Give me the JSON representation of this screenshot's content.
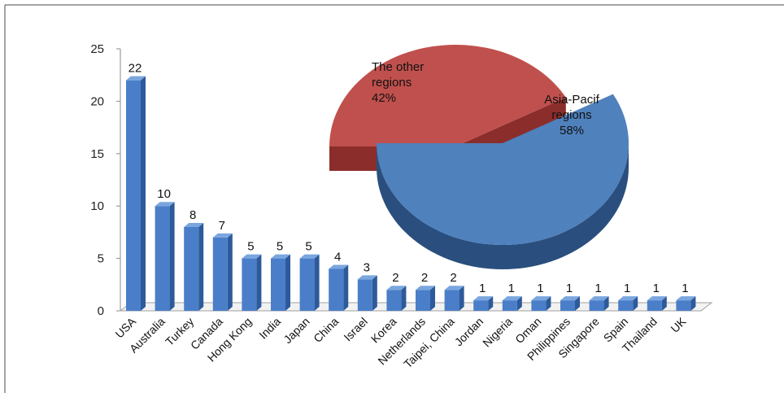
{
  "chart_data": [
    {
      "type": "bar",
      "categories": [
        "USA",
        "Australia",
        "Turkey",
        "Canada",
        "Hong Kong",
        "India",
        "Japan",
        "China",
        "Israel",
        "Korea",
        "Netherlands",
        "Taipei, China",
        "Jordan",
        "Nigeria",
        "Oman",
        "Philippines",
        "Singapore",
        "Spain",
        "Thailand",
        "UK"
      ],
      "values": [
        22,
        10,
        8,
        7,
        5,
        5,
        5,
        4,
        3,
        2,
        2,
        2,
        1,
        1,
        1,
        1,
        1,
        1,
        1,
        1
      ],
      "yticks": [
        0,
        5,
        10,
        15,
        20,
        25
      ],
      "ylim": [
        0,
        25
      ],
      "grid": false,
      "bar_style": "3d-column",
      "colors": {
        "bar_front": "#4a7ec8",
        "bar_side": "#2d5a9a",
        "bar_top": "#7aa6e0"
      }
    },
    {
      "type": "pie",
      "style": "3d-exploded",
      "slices": [
        {
          "label": "The other regions",
          "value": 42,
          "value_label": "42%",
          "color": "#c0504d",
          "dark": "#8b2e2b"
        },
        {
          "label": "Asia-Pacif regions",
          "value": 58,
          "value_label": "58%",
          "color": "#4f81bd",
          "dark": "#2a4f7e"
        }
      ]
    }
  ]
}
